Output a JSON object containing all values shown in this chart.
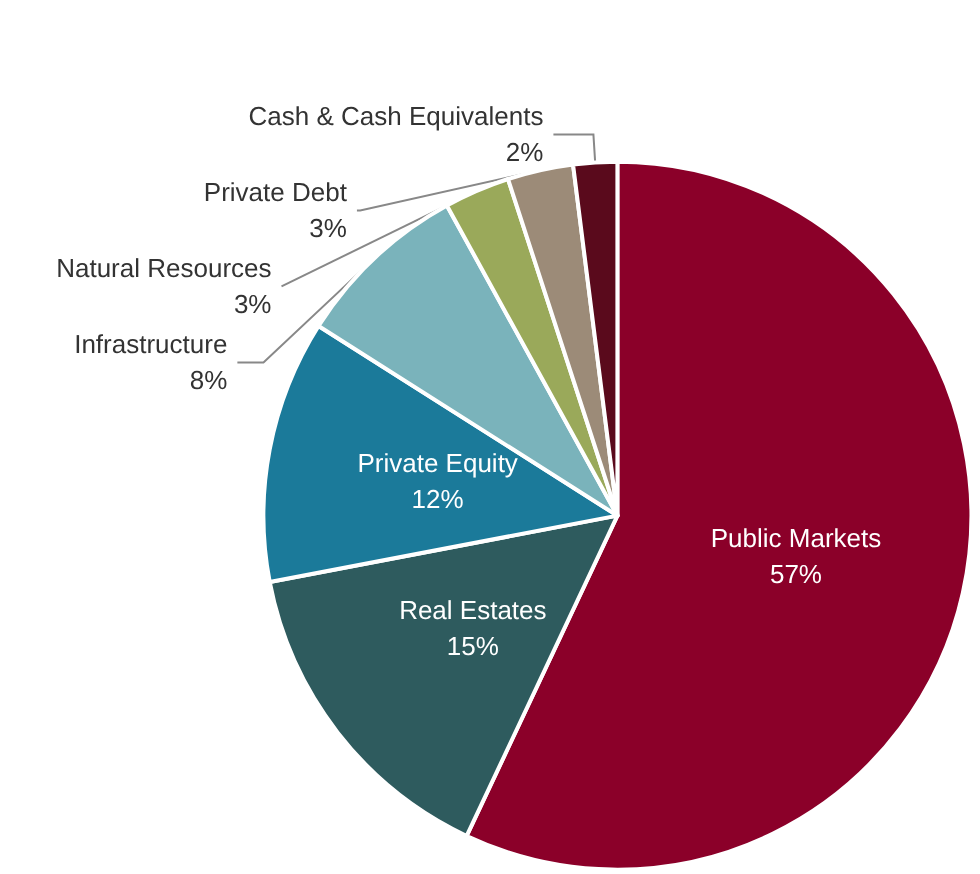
{
  "chart_data": {
    "type": "pie",
    "categories": [
      "Public Markets",
      "Real Estates",
      "Private Equity",
      "Infrastructure",
      "Natural Resources",
      "Private Debt",
      "Cash & Cash Equivalents"
    ],
    "values": [
      57,
      15,
      12,
      8,
      3,
      3,
      2
    ],
    "value_labels": [
      "57%",
      "15%",
      "12%",
      "8%",
      "3%",
      "3%",
      "2%"
    ],
    "colors": [
      "#8b0029",
      "#2e5b5e",
      "#1b7a9a",
      "#7ab3bb",
      "#9aa95a",
      "#9c8b78",
      "#5a0a1c"
    ],
    "legend": false
  }
}
